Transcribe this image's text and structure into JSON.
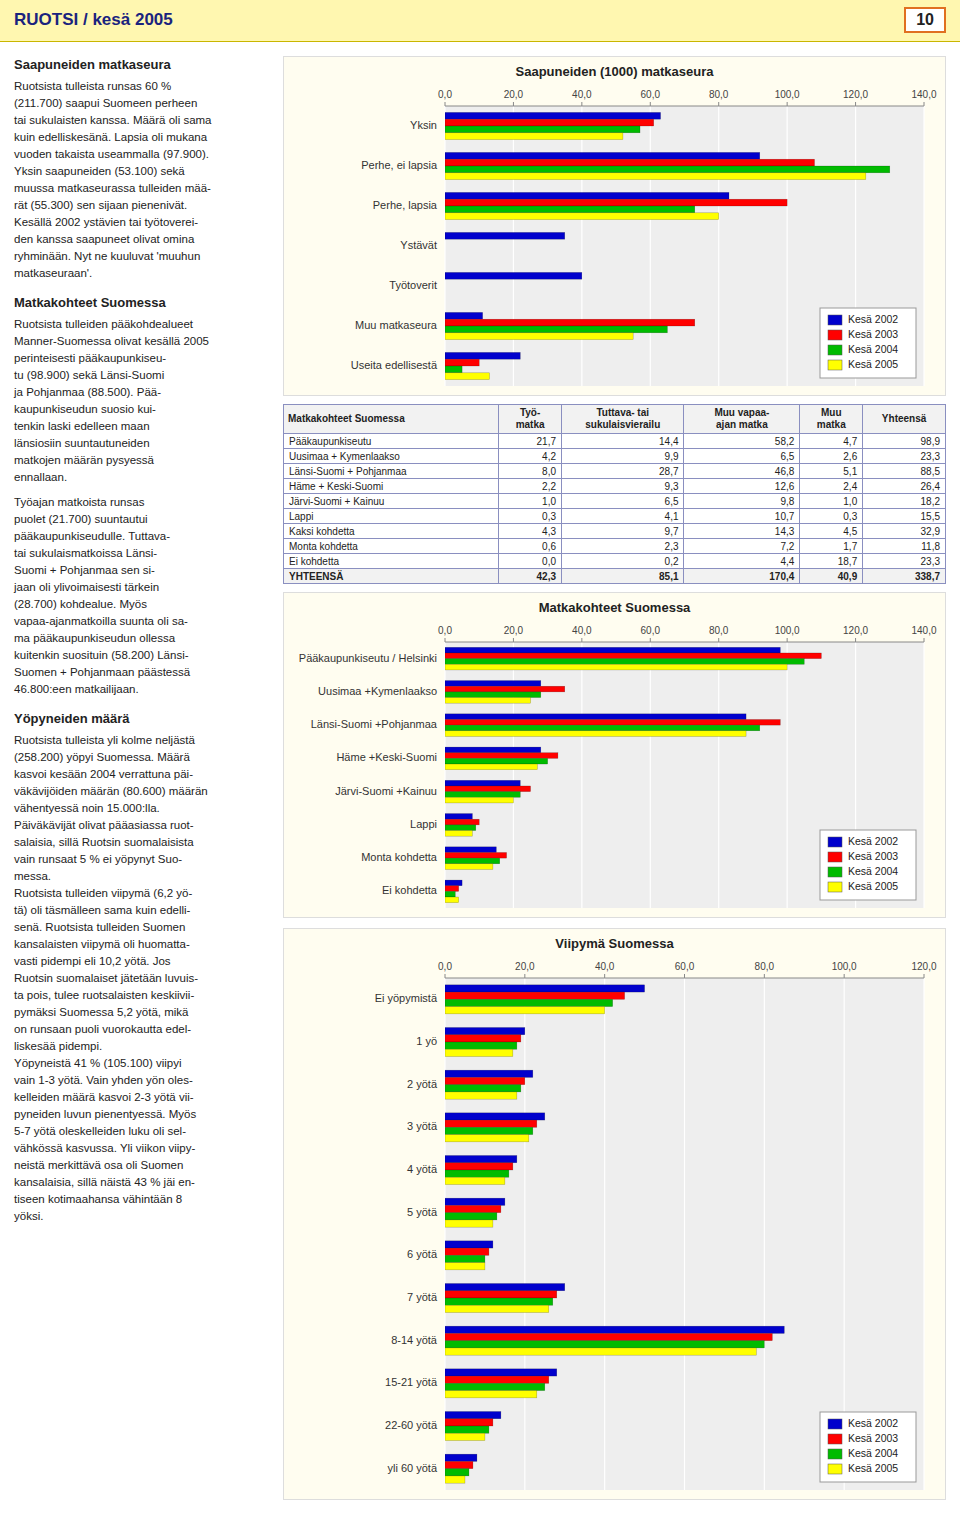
{
  "title": "RUOTSI / kesä 2005",
  "page_number": "10",
  "chart_data": [
    {
      "type": "bar",
      "orientation": "horizontal",
      "title": "Saapuneiden (1000) matkaseura",
      "categories": [
        "Yksin",
        "Perhe, ei lapsia",
        "Perhe, lapsia",
        "Ystävät",
        "Työtoverit",
        "Muu matkaseura",
        "Useita edellisestä"
      ],
      "series": [
        {
          "name": "Kesä 2002",
          "color": "#0000CC",
          "values": [
            63,
            92,
            83,
            35,
            40,
            11,
            22
          ]
        },
        {
          "name": "Kesä 2003",
          "color": "#FF0000",
          "values": [
            61,
            108,
            100,
            0,
            0,
            73,
            10
          ]
        },
        {
          "name": "Kesä 2004",
          "color": "#00BB00",
          "values": [
            57,
            130,
            73,
            0,
            0,
            65,
            5
          ]
        },
        {
          "name": "Kesä 2005",
          "color": "#FFFF00",
          "values": [
            52,
            123,
            80,
            0,
            0,
            55,
            13
          ]
        }
      ],
      "xlim": [
        0,
        140
      ],
      "xticks": [
        {
          "value": 0,
          "label": "0,0"
        },
        {
          "value": 20,
          "label": "20,0"
        },
        {
          "value": 40,
          "label": "40,0"
        },
        {
          "value": 60,
          "label": "60,0"
        },
        {
          "value": 80,
          "label": "80,0"
        },
        {
          "value": 100,
          "label": "100,0"
        },
        {
          "value": 120,
          "label": "120,0"
        },
        {
          "value": 140,
          "label": "140,0"
        }
      ],
      "grid": true,
      "legend": "lower right"
    },
    {
      "type": "bar",
      "orientation": "horizontal",
      "title": "Matkakohteet Suomessa",
      "categories": [
        "Pääkaupunkiseutu / Helsinki",
        "Uusimaa +Kymenlaakso",
        "Länsi-Suomi +Pohjanmaa",
        "Häme +Keski-Suomi",
        "Järvi-Suomi +Kainuu",
        "Lappi",
        "Monta kohdetta",
        "Ei kohdetta"
      ],
      "series": [
        {
          "name": "Kesä 2002",
          "color": "#0000CC",
          "values": [
            98,
            28,
            88,
            28,
            22,
            8,
            15,
            5
          ]
        },
        {
          "name": "Kesä 2003",
          "color": "#FF0000",
          "values": [
            110,
            35,
            98,
            33,
            25,
            10,
            18,
            4
          ]
        },
        {
          "name": "Kesä 2004",
          "color": "#00BB00",
          "values": [
            105,
            28,
            92,
            30,
            22,
            9,
            16,
            3
          ]
        },
        {
          "name": "Kesä 2005",
          "color": "#FFFF00",
          "values": [
            100,
            25,
            88,
            27,
            20,
            8,
            14,
            4
          ]
        }
      ],
      "xlim": [
        0,
        140
      ],
      "xticks": [
        {
          "value": 0,
          "label": "0,0"
        },
        {
          "value": 20,
          "label": "20,0"
        },
        {
          "value": 40,
          "label": "40,0"
        },
        {
          "value": 60,
          "label": "60,0"
        },
        {
          "value": 80,
          "label": "80,0"
        },
        {
          "value": 100,
          "label": "100,0"
        },
        {
          "value": 120,
          "label": "120,0"
        },
        {
          "value": 140,
          "label": "140,0"
        }
      ],
      "grid": true,
      "legend": "lower right"
    },
    {
      "type": "bar",
      "orientation": "horizontal",
      "title": "Viipymä Suomessa",
      "categories": [
        "Ei yöpymistä",
        "1 yö",
        "2 yötä",
        "3 yötä",
        "4 yötä",
        "5 yötä",
        "6 yötä",
        "7 yötä",
        "8-14 yötä",
        "15-21 yötä",
        "22-60 yötä",
        "yli 60 yötä"
      ],
      "series": [
        {
          "name": "Kesä 2002",
          "color": "#0000CC",
          "values": [
            50,
            20,
            22,
            25,
            18,
            15,
            12,
            30,
            85,
            28,
            14,
            8
          ]
        },
        {
          "name": "Kesä 2003",
          "color": "#FF0000",
          "values": [
            45,
            19,
            20,
            23,
            17,
            14,
            11,
            28,
            82,
            26,
            12,
            7
          ]
        },
        {
          "name": "Kesä 2004",
          "color": "#00BB00",
          "values": [
            42,
            18,
            19,
            22,
            16,
            13,
            10,
            27,
            80,
            25,
            11,
            6
          ]
        },
        {
          "name": "Kesä 2005",
          "color": "#FFFF00",
          "values": [
            40,
            17,
            18,
            21,
            15,
            12,
            10,
            26,
            78,
            23,
            10,
            5
          ]
        }
      ],
      "xlim": [
        0,
        120
      ],
      "xticks": [
        {
          "value": 0,
          "label": "0,0"
        },
        {
          "value": 20,
          "label": "20,0"
        },
        {
          "value": 40,
          "label": "40,0"
        },
        {
          "value": 60,
          "label": "60,0"
        },
        {
          "value": 80,
          "label": "80,0"
        },
        {
          "value": 100,
          "label": "100,0"
        },
        {
          "value": 120,
          "label": "120,0"
        }
      ],
      "grid": true,
      "legend": "lower right"
    }
  ],
  "table": {
    "headers": [
      "Matkakohteet Suomessa",
      "Työ-\nmatka",
      "Tuttava- tai\nsukulaisvierailu",
      "Muu vapaa-\najan matka",
      "Muu\nmatka",
      "Yhteensä"
    ],
    "rows": [
      [
        "Pääkaupunkiseutu",
        "21,7",
        "14,4",
        "58,2",
        "4,7",
        "98,9"
      ],
      [
        "Uusimaa + Kymenlaakso",
        "4,2",
        "9,9",
        "6,5",
        "2,6",
        "23,3"
      ],
      [
        "Länsi-Suomi + Pohjanmaa",
        "8,0",
        "28,7",
        "46,8",
        "5,1",
        "88,5"
      ],
      [
        "Häme + Keski-Suomi",
        "2,2",
        "9,3",
        "12,6",
        "2,4",
        "26,4"
      ],
      [
        "Järvi-Suomi + Kainuu",
        "1,0",
        "6,5",
        "9,8",
        "1,0",
        "18,2"
      ],
      [
        "Lappi",
        "0,3",
        "4,1",
        "10,7",
        "0,3",
        "15,5"
      ],
      [
        "Kaksi kohdetta",
        "4,3",
        "9,7",
        "14,3",
        "4,5",
        "32,9"
      ],
      [
        "Monta kohdetta",
        "0,6",
        "2,3",
        "7,2",
        "1,7",
        "11,8"
      ],
      [
        "Ei kohdetta",
        "0,0",
        "0,2",
        "4,4",
        "18,7",
        "23,3"
      ],
      [
        "YHTEENSÄ",
        "42,3",
        "85,1",
        "170,4",
        "40,9",
        "338,7"
      ]
    ]
  },
  "text_blocks": [
    {
      "heading": "Saapuneiden matkaseura",
      "paragraphs": [
        [
          "Ruotsista tulleista runsas 60 %",
          "(211.700) saapui Suomeen perheen",
          "tai sukulaisten kanssa. Määrä oli sama",
          "kuin edelliskesänä. Lapsia oli mukana",
          "vuoden takaista useammalla (97.900).",
          "Yksin saapuneiden (53.100) sekä",
          "muussa matkaseurassa tulleiden mää-",
          "rät (55.300) sen sijaan pienenivät.",
          "Kesällä 2002 ystävien tai työtoverei-",
          "den kanssa saapuneet olivat omina",
          "ryhminään. Nyt ne kuuluvat 'muuhun",
          "matkaseuraan'."
        ]
      ]
    },
    {
      "heading": "Matkakohteet Suomessa",
      "paragraphs": [
        [
          "Ruotsista tulleiden pääkohdealueet",
          "Manner-Suomessa olivat kesällä 2005",
          "perinteisesti pääkaupunkiseu-",
          "tu (98.900) sekä Länsi-Suomi",
          "ja Pohjanmaa (88.500). Pää-",
          "kaupunkiseudun suosio kui-",
          "tenkin laski edelleen maan",
          "länsiosiin suuntautuneiden",
          "matkojen määrän pysyessä",
          "ennallaan."
        ],
        [
          "Työajan matkoista runsas",
          "puolet (21.700) suuntautui",
          "pääkaupunkiseudulle. Tuttava-",
          "tai sukulaismatkoissa Länsi-",
          "Suomi + Pohjanmaa sen si-",
          "jaan oli ylivoimaisesti tärkein",
          "(28.700) kohdealue. Myös",
          "vapaa-ajanmatkoilla suunta oli sa-",
          "ma pääkaupunkiseudun ollessa",
          "kuitenkin suosituin (58.200) Länsi-",
          "Suomen + Pohjanmaan päästessä",
          "46.800:een matkailijaan."
        ]
      ]
    },
    {
      "heading": "Yöpyneiden määrä",
      "paragraphs": [
        [
          "Ruotsista tulleista yli kolme neljästä",
          "(258.200) yöpyi Suomessa. Määrä",
          "kasvoi kesään 2004 verrattuna päi-",
          "väkävijöiden määrän (80.600) määrän vähentyessä noin 15.000:lla.",
          "Päiväkävijät olivat pääasiassa ruot-",
          "salaisia, sillä Ruotsin suomalaisista",
          "vain runsaat 5 % ei yöpynyt Suo-",
          "messa.",
          "Ruotsista tulleiden viipymä (6,2 yö-",
          "tä) oli täsmälleen sama kuin edelli-",
          "senä. Ruotsista tulleiden Suomen",
          "kansalaisten viipymä oli huomatta-",
          "vasti pidempi eli 10,2 yötä. Jos",
          "Ruotsin suomalaiset jätetään luvuis-",
          "ta pois, tulee ruotsalaisten keskiivii-",
          "pymäksi Suomessa 5,2 yötä, mikä",
          "on runsaan puoli vuorokautta edel-",
          "liskesää pidempi.",
          "Yöpyneistä 41 % (105.100) viipyi",
          "vain 1-3 yötä. Vain yhden yön oles-",
          "kelleiden määrä kasvoi 2-3 yötä vii-",
          "pyneiden luvun pienentyessä. Myös",
          "5-7 yötä oleskelleiden luku oli sel-",
          "vähkössä kasvussa. Yli viikon viipy-",
          "neistä merkittävä osa oli Suomen",
          "kansalaisia, sillä näistä 43 % jäi en-",
          "tiseen kotimaahansa vähintään 8",
          "yöksi."
        ]
      ]
    }
  ]
}
